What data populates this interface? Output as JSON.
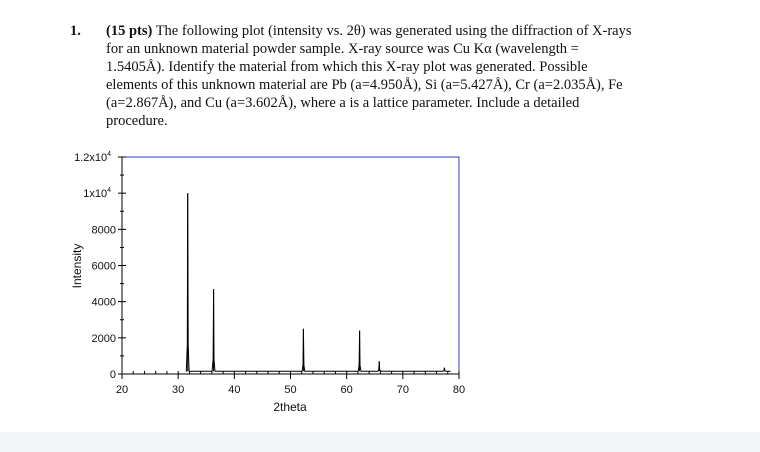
{
  "question": {
    "number": "1.",
    "points": "(15 pts)",
    "lines": [
      "The following plot (intensity vs. 2θ) was generated using the diffraction of X-rays",
      "for an unknown material powder sample.  X-ray source was Cu Kα (wavelength =",
      "1.5405Å).  Identify the material from which this X-ray plot was generated.  Possible",
      "elements of this unknown material are Pb (a=4.950Å), Si (a=5.427Å), Cr (a=2.035Å), Fe",
      "(a=2.867Å), and Cu (a=3.602Å), where a is a lattice parameter.  Include a detailed",
      "procedure."
    ]
  },
  "chart_data": {
    "type": "line",
    "title": "",
    "xlabel": "2theta",
    "ylabel": "Intensity",
    "xlim": [
      20,
      80
    ],
    "ylim": [
      0,
      12000
    ],
    "x_ticks": [
      20,
      30,
      40,
      50,
      60,
      70,
      80
    ],
    "y_ticks": [
      {
        "value": 0,
        "label": "0"
      },
      {
        "value": 2000,
        "label": "2000"
      },
      {
        "value": 4000,
        "label": "4000"
      },
      {
        "value": 6000,
        "label": "6000"
      },
      {
        "value": 8000,
        "label": "8000"
      },
      {
        "value": 10000,
        "label": "1x10",
        "sup": "4"
      },
      {
        "value": 12000,
        "label": "1.2x10",
        "sup": "4"
      }
    ],
    "grid": false,
    "baseline": 150,
    "peaks": [
      {
        "x": 31.7,
        "y": 10000
      },
      {
        "x": 36.3,
        "y": 4700
      },
      {
        "x": 52.3,
        "y": 2500
      },
      {
        "x": 62.3,
        "y": 2400
      },
      {
        "x": 65.8,
        "y": 700
      },
      {
        "x": 77.4,
        "y": 350
      }
    ],
    "colors": {
      "frame": "#2b3fbf",
      "axis": "#000000",
      "series": "#000000"
    }
  }
}
